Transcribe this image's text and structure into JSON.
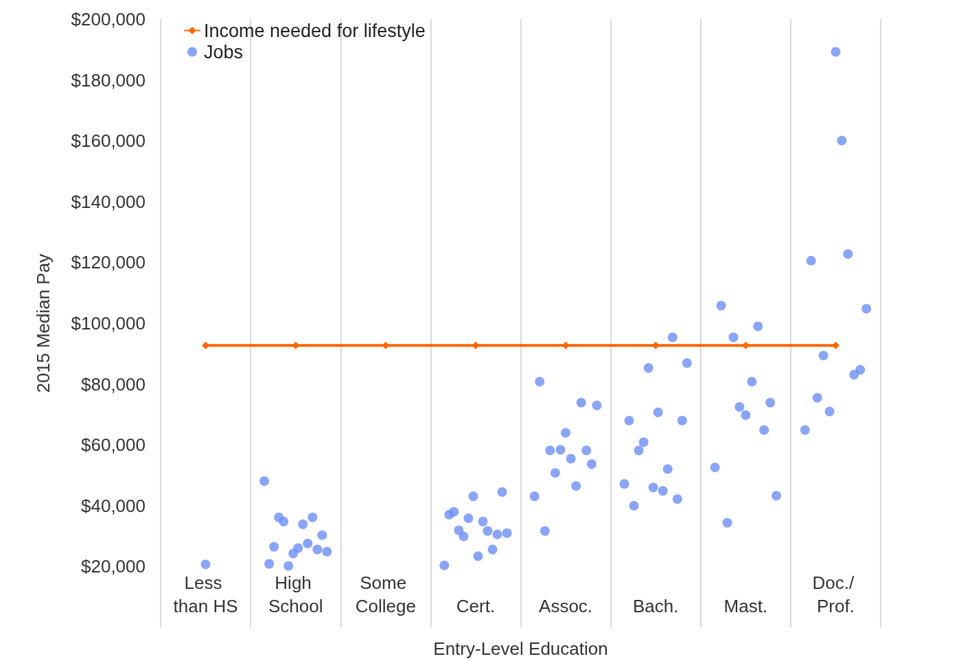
{
  "chart_data": {
    "type": "scatter",
    "xlabel": "Entry-Level Education",
    "ylabel": "2015 Median Pay",
    "categories": [
      "Less than HS",
      "High School",
      "Some College",
      "Cert.",
      "Assoc.",
      "Bach.",
      "Mast.",
      "Doc./ Prof."
    ],
    "ylim": [
      0,
      200000
    ],
    "yticks": [
      {
        "value": 20000,
        "label": "$20,000"
      },
      {
        "value": 40000,
        "label": "$40,000"
      },
      {
        "value": 60000,
        "label": "$60,000"
      },
      {
        "value": 80000,
        "label": "$80,000"
      },
      {
        "value": 100000,
        "label": "$100,000"
      },
      {
        "value": 120000,
        "label": "$120,000"
      },
      {
        "value": 140000,
        "label": "$140,000"
      },
      {
        "value": 160000,
        "label": "$160,000"
      },
      {
        "value": 180000,
        "label": "$180,000"
      },
      {
        "value": 200000,
        "label": "$200,000"
      }
    ],
    "grid": "x",
    "legend": "top left",
    "series": [
      {
        "name": "Income needed for lifestyle",
        "type": "line",
        "color": "#ff6600",
        "marker": "diamond",
        "line_style": "solid",
        "values": [
          92700,
          92700,
          92700,
          92700,
          92700,
          92700,
          92700,
          92700
        ]
      },
      {
        "name": "Jobs",
        "color": "#6d8ef5",
        "marker": "circle",
        "x": [
          "Less than HS",
          "High School",
          "High School",
          "High School",
          "High School",
          "High School",
          "High School",
          "High School",
          "High School",
          "High School",
          "High School",
          "High School",
          "High School",
          "High School",
          "High School",
          "Cert.",
          "Cert.",
          "Cert.",
          "Cert.",
          "Cert.",
          "Cert.",
          "Cert.",
          "Cert.",
          "Cert.",
          "Cert.",
          "Cert.",
          "Cert.",
          "Cert.",
          "Cert.",
          "Assoc.",
          "Assoc.",
          "Assoc.",
          "Assoc.",
          "Assoc.",
          "Assoc.",
          "Assoc.",
          "Assoc.",
          "Assoc.",
          "Assoc.",
          "Assoc.",
          "Assoc.",
          "Assoc.",
          "Bach.",
          "Bach.",
          "Bach.",
          "Bach.",
          "Bach.",
          "Bach.",
          "Bach.",
          "Bach.",
          "Bach.",
          "Bach.",
          "Bach.",
          "Bach.",
          "Bach.",
          "Bach.",
          "Mast.",
          "Mast.",
          "Mast.",
          "Mast.",
          "Mast.",
          "Mast.",
          "Mast.",
          "Mast.",
          "Mast.",
          "Mast.",
          "Mast.",
          "Doc./ Prof.",
          "Doc./ Prof.",
          "Doc./ Prof.",
          "Doc./ Prof.",
          "Doc./ Prof.",
          "Doc./ Prof.",
          "Doc./ Prof.",
          "Doc./ Prof.",
          "Doc./ Prof.",
          "Doc./ Prof.",
          "Doc./ Prof."
        ],
        "values": [
          20700,
          48100,
          20900,
          26500,
          36200,
          34800,
          20200,
          24300,
          26100,
          33900,
          27600,
          36200,
          25600,
          30300,
          24900,
          20400,
          37100,
          38000,
          31900,
          29900,
          35900,
          43100,
          23400,
          34800,
          31700,
          25600,
          30600,
          44500,
          31000,
          43100,
          80800,
          31700,
          58200,
          50800,
          58400,
          64000,
          55500,
          46500,
          73900,
          58200,
          53700,
          73000,
          47200,
          68000,
          40000,
          58200,
          60900,
          85300,
          46000,
          70700,
          44900,
          52100,
          95400,
          42200,
          68000,
          86900,
          52600,
          105800,
          34400,
          95400,
          72500,
          69800,
          80800,
          99000,
          64900,
          73900,
          43300,
          64900,
          120600,
          75500,
          89400,
          71000,
          189300,
          160100,
          122800,
          83100,
          84700,
          104800
        ]
      }
    ]
  }
}
